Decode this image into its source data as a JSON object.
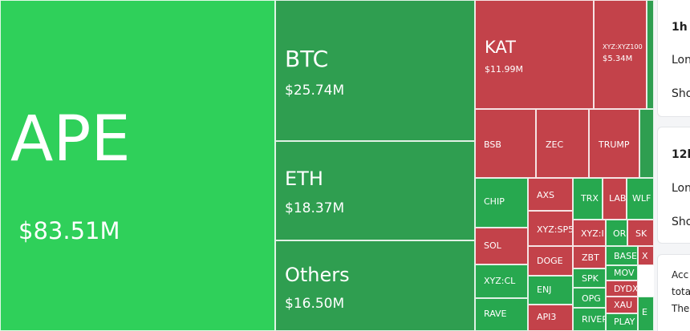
{
  "treemap": {
    "big": [
      {
        "symbol": "APE",
        "value": "$83.51M"
      },
      {
        "symbol": "BTC",
        "value": "$25.74M"
      },
      {
        "symbol": "ETH",
        "value": "$18.37M"
      },
      {
        "symbol": "Others",
        "value": "$16.50M"
      },
      {
        "symbol": "KAT",
        "value": "$11.99M"
      },
      {
        "symbol": "XYZ:XYZ100",
        "value": "$5.34M"
      }
    ],
    "small": [
      "BSB",
      "ZEC",
      "TRUMP",
      "CHIP",
      "AXS",
      "TRX",
      "LAB",
      "WLF",
      "XYZ:SP5",
      "XYZ:I",
      "OR",
      "SK",
      "SOL",
      "ZBT",
      "BASE",
      "X",
      "DOGE",
      "MOV",
      "XYZ:CL",
      "SPK",
      "DYDX",
      "ENJ",
      "OPG",
      "XAU",
      "RAVE",
      "API3",
      "RIVER",
      "PLAY",
      "E"
    ]
  },
  "side": {
    "card1": {
      "title": "1h",
      "line1": "Lon",
      "line2": "Sho"
    },
    "card2": {
      "title": "12h",
      "line1": "Lon",
      "line2": "Sho"
    },
    "card3": {
      "line1": "Acc",
      "line2": "tota",
      "line3": "The"
    }
  },
  "colors": {
    "green_light": "#2fd05a",
    "green_dark": "#2f9e50",
    "red": "#c3424a"
  }
}
